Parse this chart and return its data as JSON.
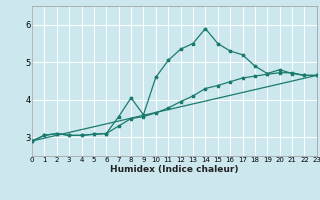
{
  "xlabel": "Humidex (Indice chaleur)",
  "background_color": "#cce8ee",
  "grid_color": "#ffffff",
  "line_color": "#1a7a6e",
  "xlim": [
    0,
    23
  ],
  "ylim": [
    2.5,
    6.5
  ],
  "yticks": [
    3,
    4,
    5,
    6
  ],
  "xticks": [
    0,
    1,
    2,
    3,
    4,
    5,
    6,
    7,
    8,
    9,
    10,
    11,
    12,
    13,
    14,
    15,
    16,
    17,
    18,
    19,
    20,
    21,
    22,
    23
  ],
  "line1_x": [
    0,
    1,
    2,
    3,
    4,
    5,
    6,
    7,
    8,
    9,
    10,
    11,
    12,
    13,
    14,
    15,
    16,
    17,
    18,
    19,
    20,
    21,
    22,
    23
  ],
  "line1_y": [
    2.9,
    3.05,
    3.1,
    3.05,
    3.05,
    3.08,
    3.1,
    3.55,
    4.05,
    3.6,
    4.6,
    5.05,
    5.35,
    5.5,
    5.9,
    5.5,
    5.3,
    5.2,
    4.9,
    4.7,
    4.8,
    4.7,
    4.65,
    4.65
  ],
  "line2_x": [
    0,
    1,
    2,
    3,
    4,
    5,
    6,
    7,
    8,
    9,
    10,
    11,
    12,
    13,
    14,
    15,
    16,
    17,
    18,
    19,
    20,
    21,
    22,
    23
  ],
  "line2_y": [
    2.9,
    3.05,
    3.1,
    3.05,
    3.05,
    3.08,
    3.1,
    3.3,
    3.5,
    3.55,
    3.65,
    3.78,
    3.95,
    4.1,
    4.3,
    4.38,
    4.48,
    4.58,
    4.63,
    4.68,
    4.72,
    4.72,
    4.65,
    4.65
  ],
  "line3_x": [
    0,
    23
  ],
  "line3_y": [
    2.9,
    4.65
  ]
}
